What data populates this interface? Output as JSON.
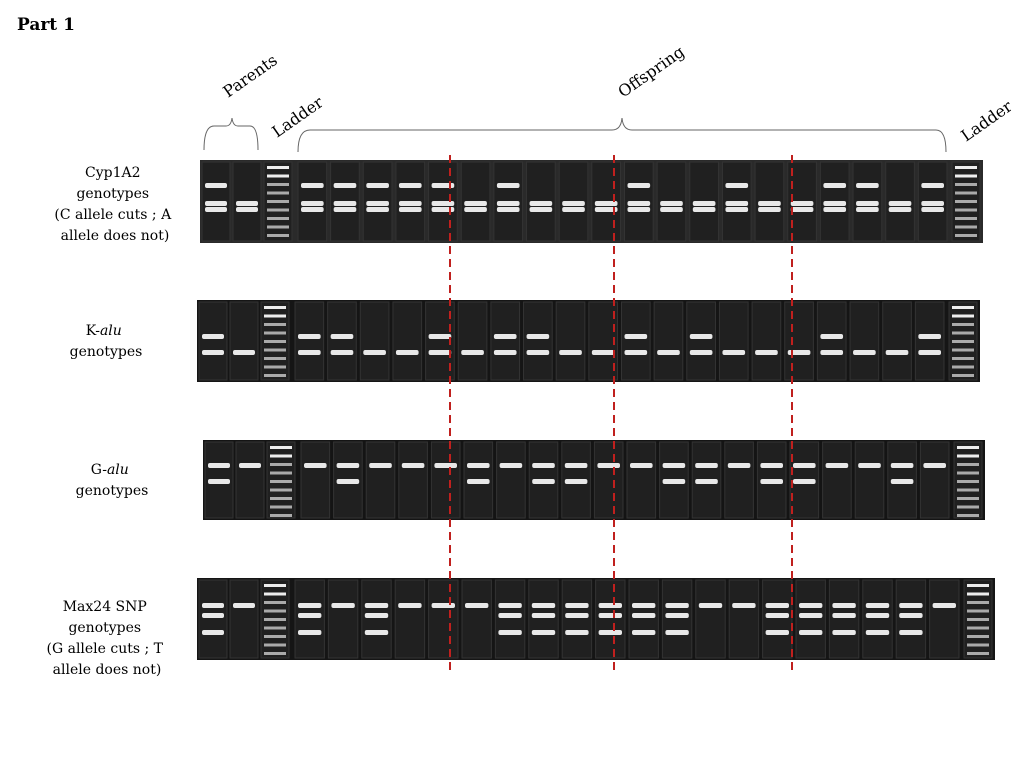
{
  "header": {
    "title": "Part 1"
  },
  "column_labels": {
    "parents": "Parents",
    "ladder_left": "Ladder",
    "offspring": "Offspring",
    "ladder_right": "Ladder"
  },
  "rows": [
    {
      "lines": [
        "Cyp1A2",
        "genotypes",
        "(C allele cuts ; A",
        "allele does not)"
      ]
    },
    {
      "lines": [
        "K-",
        "alu",
        "genotypes"
      ]
    },
    {
      "lines": [
        "G-",
        "alu",
        "genotypes"
      ]
    },
    {
      "lines": [
        "Max24 SNP",
        "genotypes",
        "(G allele cuts ; T",
        "allele does not)"
      ]
    }
  ]
}
